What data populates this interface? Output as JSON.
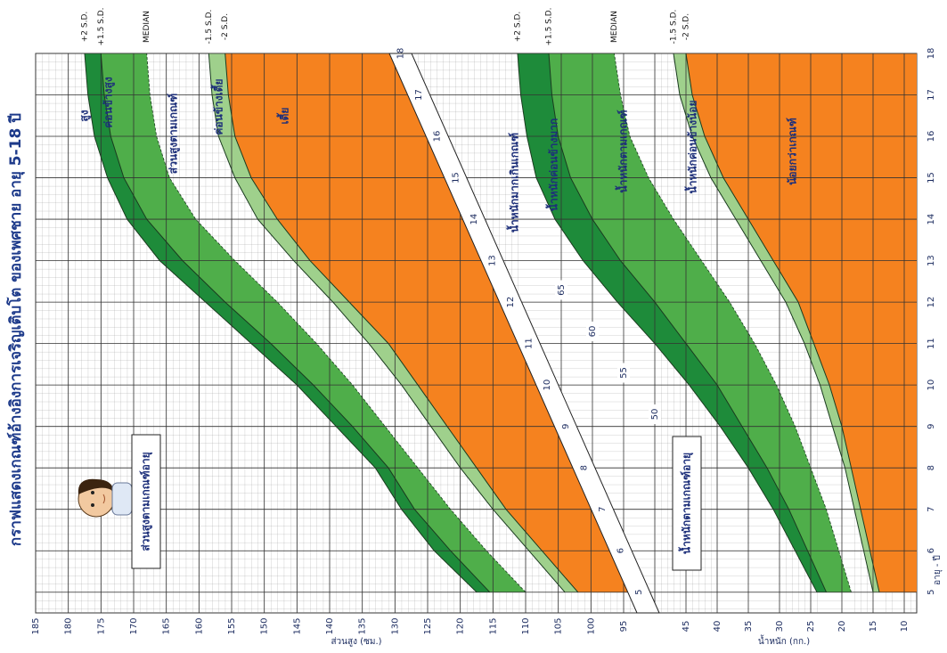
{
  "chart_data": [
    {
      "type": "line",
      "title": "กราฟแสดงเกณฑ์อ้างอิงการเจริญเติบโต ของเพศชาย อายุ 5-18 ปี",
      "subtitle": "ส่วนสูงตามเกณฑ์อายุ",
      "y_label": "ส่วนสูง (ซม.)",
      "x": [
        5,
        6,
        7,
        8,
        9,
        10,
        11,
        12,
        13,
        14,
        15,
        16,
        17,
        18
      ],
      "xlim": [
        4.5,
        18
      ],
      "xticks": [
        5,
        6,
        7,
        8,
        9,
        10,
        11,
        12,
        13,
        14,
        15,
        16,
        17,
        18
      ],
      "ylim": [
        92,
        185
      ],
      "yticks": [
        95,
        100,
        105,
        110,
        115,
        120,
        125,
        130,
        135,
        140,
        145,
        150,
        155,
        160,
        165,
        170,
        175,
        180,
        185
      ],
      "grid": true,
      "band_colors": [
        "#1e8b3a",
        "#4fae4a",
        "#9fd08c"
      ],
      "below_color": "#f5821f",
      "series": [
        {
          "name": "+2 S.D.",
          "color": "#1a3b1f",
          "values": [
            117.5,
            124,
            129,
            133,
            139,
            145,
            152,
            159,
            166,
            171,
            174,
            176,
            177,
            177.5
          ]
        },
        {
          "name": "+1.5 S.D.",
          "color": "#1a3b1f",
          "values": [
            115.5,
            121.5,
            127,
            131,
            136.5,
            142.5,
            149,
            156,
            162.5,
            168,
            171.5,
            173.5,
            174.5,
            175
          ]
        },
        {
          "name": "MEDIAN",
          "color": "#1a3b1f",
          "values": [
            110,
            116,
            121.5,
            126.5,
            131.5,
            136.5,
            142,
            148,
            154.5,
            160.5,
            164.5,
            166.5,
            167.5,
            168
          ]
        },
        {
          "name": "-1.5 S.D.",
          "color": "#1a3b1f",
          "values": [
            104,
            109.5,
            115,
            120,
            124.5,
            129,
            134,
            139.5,
            145.5,
            151,
            154.5,
            157,
            158,
            158.5
          ]
        },
        {
          "name": "-2 S.D.",
          "color": "#1a3b1f",
          "values": [
            102,
            107.5,
            113,
            117.5,
            122,
            126.5,
            131,
            137,
            143,
            148,
            152,
            154.5,
            155.5,
            156
          ]
        }
      ],
      "annotations": [
        "สูง",
        "ค่อนข้างสูง",
        "ส่วนสูงตามเกณฑ์",
        "ค่อนข้างเตี้ย",
        "เตี้ย"
      ]
    },
    {
      "type": "line",
      "subtitle": "น้ำหนักตามเกณฑ์อายุ",
      "y_label": "น้ำหนัก (กก.)",
      "x_label": "อายุ - ปี",
      "x": [
        5,
        6,
        7,
        8,
        9,
        10,
        11,
        12,
        13,
        14,
        15,
        16,
        17,
        18
      ],
      "xlim": [
        4.5,
        18
      ],
      "xticks": [
        5,
        6,
        7,
        8,
        9,
        10,
        11,
        12,
        13,
        14,
        15,
        16,
        17,
        18
      ],
      "ylim": [
        8,
        100
      ],
      "yticks": [
        10,
        15,
        20,
        25,
        30,
        35,
        40,
        45,
        50,
        55,
        60,
        65
      ],
      "grid": true,
      "band_colors": [
        "#1e8b3a",
        "#4fae4a",
        "#9fd08c"
      ],
      "below_color": "#f5821f",
      "series": [
        {
          "name": "+2 S.D.",
          "color": "#1a3b1f",
          "values": [
            24,
            27.5,
            31,
            35,
            39.5,
            44.5,
            50,
            56,
            61.5,
            66,
            69,
            70.5,
            71.5,
            72
          ]
        },
        {
          "name": "+1.5 S.D.",
          "color": "#1a3b1f",
          "values": [
            22.5,
            25.5,
            28.5,
            32,
            36,
            40,
            45,
            50,
            55.5,
            60,
            63.5,
            65.5,
            66.5,
            67
          ]
        },
        {
          "name": "MEDIAN",
          "color": "#1a3b1f",
          "values": [
            18.5,
            20.5,
            22.5,
            25,
            27.5,
            30.5,
            34,
            38,
            42.5,
            47,
            51,
            54,
            55.5,
            56.5
          ]
        },
        {
          "name": "-1.5 S.D.",
          "color": "#1a3b1f",
          "values": [
            15,
            16.5,
            18,
            19.5,
            21.5,
            23.5,
            26,
            29,
            33,
            37,
            41,
            44,
            46,
            47
          ]
        },
        {
          "name": "-2 S.D.",
          "color": "#1a3b1f",
          "values": [
            14,
            15.5,
            17,
            18.5,
            20,
            22,
            24.5,
            27,
            31,
            35,
            39,
            42,
            44,
            45
          ]
        }
      ],
      "annotations": [
        "น้ำหนักมากเกินเกณฑ์",
        "น้ำหนักค่อนข้างมาก",
        "น้ำหนักตามเกณฑ์",
        "น้ำหนักค่อนข้างน้อย",
        "น้อยกว่าเกณฑ์"
      ]
    }
  ]
}
